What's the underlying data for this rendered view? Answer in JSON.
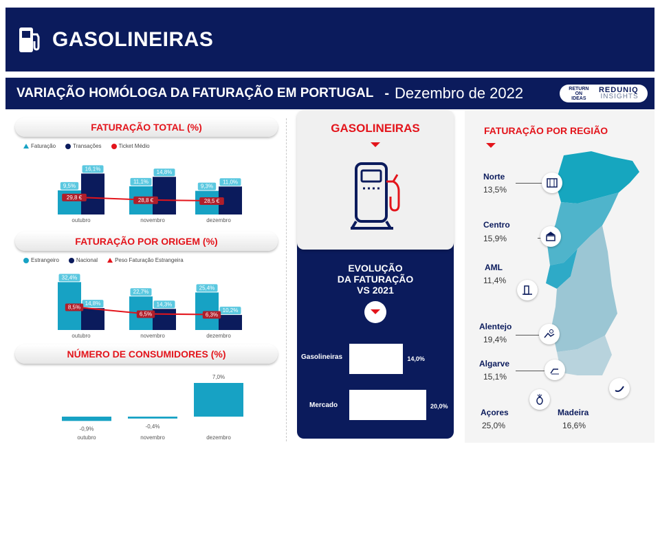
{
  "header": {
    "title": "GASOLINEIRAS",
    "icon": "gas-pump-icon"
  },
  "subheader": {
    "title": "VARIAÇÃO HOMÓLOGA DA FATURAÇÃO EM PORTUGAL",
    "separator": "-",
    "date": "Dezembro de 2022",
    "logo1_lines": [
      "RETURN",
      "ON",
      "IDEAS"
    ],
    "logo2_line1": "REDUNIQ",
    "logo2_line2": "INSIGHTS"
  },
  "colors": {
    "navy": "#0b1b5c",
    "teal": "#17a2c4",
    "light_teal": "#5bc8e0",
    "red": "#e3141b",
    "dark_red": "#b01e2a"
  },
  "chart_data": [
    {
      "type": "bar",
      "title": "FATURAÇÃO TOTAL (%)",
      "legend": [
        "Faturação",
        "Transações",
        "Ticket Médio"
      ],
      "categories": [
        "outubro",
        "novembro",
        "dezembro"
      ],
      "series": [
        {
          "name": "Faturação",
          "values": [
            9.5,
            11.1,
            9.3
          ],
          "labels": [
            "9,5%",
            "11,1%",
            "9,3%"
          ]
        },
        {
          "name": "Transações",
          "values": [
            16.1,
            14.8,
            11.0
          ],
          "labels": [
            "16,1%",
            "14,8%",
            "11,0%"
          ]
        },
        {
          "name": "Ticket Médio",
          "values": [
            29.8,
            28.8,
            28.5
          ],
          "labels": [
            "29,8 €",
            "28,8 €",
            "28,5 €"
          ]
        }
      ]
    },
    {
      "type": "bar",
      "title": "FATURAÇÃO POR ORIGEM (%)",
      "legend": [
        "Estrangeiro",
        "Nacional",
        "Peso Faturação Estrangeira"
      ],
      "categories": [
        "outubro",
        "novembro",
        "dezembro"
      ],
      "series": [
        {
          "name": "Estrangeiro",
          "values": [
            32.4,
            22.7,
            25.4
          ],
          "labels": [
            "32,4%",
            "22,7%",
            "25,4%"
          ]
        },
        {
          "name": "Nacional",
          "values": [
            14.8,
            14.3,
            10.2
          ],
          "labels": [
            "14,8%",
            "14,3%",
            "10,2%"
          ]
        },
        {
          "name": "Peso Faturação Estrangeira",
          "values": [
            8.5,
            6.5,
            6.3
          ],
          "labels": [
            "8,5%",
            "6,5%",
            "6,3%"
          ]
        }
      ]
    },
    {
      "type": "bar",
      "title": "NÚMERO DE CONSUMIDORES (%)",
      "categories": [
        "outubro",
        "novembro",
        "dezembro"
      ],
      "values": [
        -0.9,
        -0.4,
        7.0
      ],
      "labels": [
        "-0,9%",
        "-0,4%",
        "7,0%"
      ]
    },
    {
      "type": "bar",
      "orientation": "horizontal",
      "title_lines": [
        "EVOLUÇÃO",
        "DA FATURAÇÃO",
        "VS 2021"
      ],
      "categories": [
        "Gasolineiras",
        "Mercado"
      ],
      "values": [
        14.0,
        20.0
      ],
      "labels": [
        "14,0%",
        "20,0%"
      ]
    }
  ],
  "center_card": {
    "title": "GASOLINEIRAS",
    "icon": "gas-pump-icon"
  },
  "regions": {
    "title": "FATURAÇÃO POR REGIÃO",
    "items": [
      {
        "name": "Norte",
        "value": "13,5%",
        "icon": "monument-icon"
      },
      {
        "name": "Centro",
        "value": "15,9%",
        "icon": "university-icon"
      },
      {
        "name": "AML",
        "value": "11,4%",
        "icon": "tower-icon"
      },
      {
        "name": "Alentejo",
        "value": "19,4%",
        "icon": "landscape-icon"
      },
      {
        "name": "Algarve",
        "value": "15,1%",
        "icon": "beach-chair-icon"
      },
      {
        "name": "Açores",
        "value": "25,0%",
        "icon": "pineapple-icon"
      },
      {
        "name": "Madeira",
        "value": "16,6%",
        "icon": "banana-icon"
      }
    ]
  }
}
